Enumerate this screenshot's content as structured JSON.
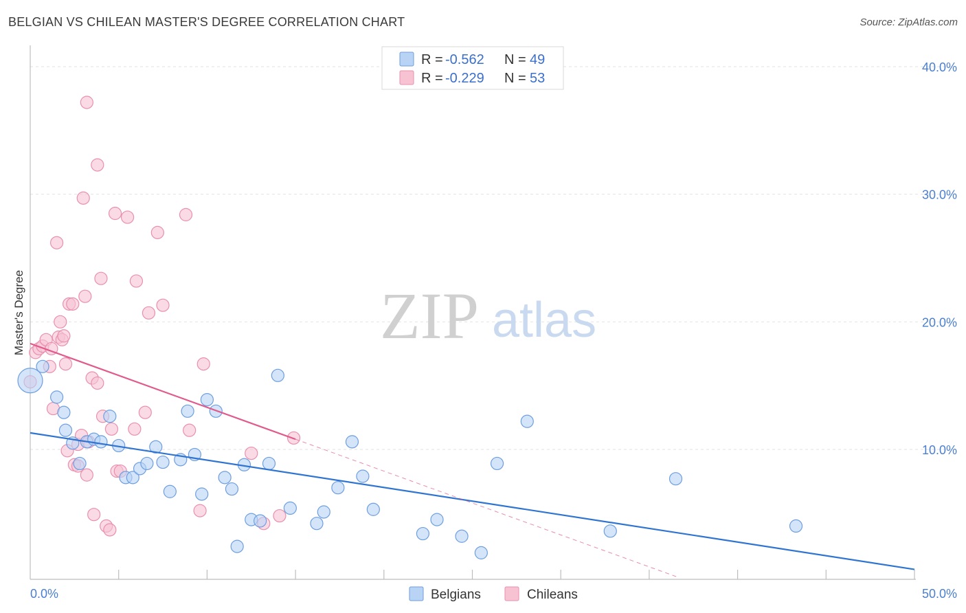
{
  "chart_data": {
    "type": "scatter",
    "title": "BELGIAN VS CHILEAN MASTER'S DEGREE CORRELATION CHART",
    "source": "Source: ZipAtlas.com",
    "ylabel": "Master's Degree",
    "xlabel": "",
    "xlim": [
      0,
      50
    ],
    "ylim": [
      0,
      40
    ],
    "x_tick_labels": [
      "0.0%",
      "50.0%"
    ],
    "y_tick_labels": [
      "10.0%",
      "20.0%",
      "30.0%",
      "40.0%"
    ],
    "y_ticks": [
      10,
      20,
      30,
      40
    ],
    "colors": {
      "belgians_fill": "#b9d3f5",
      "belgians_stroke": "#6d9ee0",
      "belgians_line": "#2f74d0",
      "chileans_fill": "#f7c3d3",
      "chileans_stroke": "#e98fae",
      "chileans_line": "#e05a8c",
      "tick_label": "#4a7fd0"
    },
    "legend": {
      "rows": [
        {
          "r_label": "R =",
          "r_value": "-0.562",
          "n_label": "N =",
          "n_value": "49"
        },
        {
          "r_label": "R =",
          "r_value": "-0.229",
          "n_label": "N =",
          "n_value": "53"
        }
      ]
    },
    "series": [
      {
        "name": "Belgians",
        "trend": {
          "x": [
            0,
            50
          ],
          "y": [
            11.3,
            0.6
          ]
        },
        "points": [
          [
            0.0,
            15.4
          ],
          [
            0.7,
            16.5
          ],
          [
            1.5,
            14.1
          ],
          [
            1.9,
            12.9
          ],
          [
            2.0,
            11.5
          ],
          [
            2.4,
            10.5
          ],
          [
            2.8,
            8.9
          ],
          [
            3.2,
            10.6
          ],
          [
            3.6,
            10.8
          ],
          [
            4.0,
            10.6
          ],
          [
            4.5,
            12.6
          ],
          [
            5.0,
            10.3
          ],
          [
            5.4,
            7.8
          ],
          [
            5.8,
            7.8
          ],
          [
            6.2,
            8.5
          ],
          [
            6.6,
            8.9
          ],
          [
            7.1,
            10.2
          ],
          [
            7.5,
            9.0
          ],
          [
            7.9,
            6.7
          ],
          [
            8.5,
            9.2
          ],
          [
            8.9,
            13.0
          ],
          [
            9.3,
            9.6
          ],
          [
            9.7,
            6.5
          ],
          [
            10.0,
            13.9
          ],
          [
            10.5,
            13.0
          ],
          [
            11.0,
            7.8
          ],
          [
            11.4,
            6.9
          ],
          [
            11.7,
            2.4
          ],
          [
            12.1,
            8.8
          ],
          [
            12.5,
            4.5
          ],
          [
            13.0,
            4.4
          ],
          [
            13.5,
            8.9
          ],
          [
            14.0,
            15.8
          ],
          [
            14.7,
            5.4
          ],
          [
            16.2,
            4.2
          ],
          [
            16.6,
            5.1
          ],
          [
            17.4,
            7.0
          ],
          [
            18.2,
            10.6
          ],
          [
            18.8,
            7.9
          ],
          [
            19.4,
            5.3
          ],
          [
            22.2,
            3.4
          ],
          [
            23.0,
            4.5
          ],
          [
            24.4,
            3.2
          ],
          [
            25.5,
            1.9
          ],
          [
            26.4,
            8.9
          ],
          [
            28.1,
            12.2
          ],
          [
            32.8,
            3.6
          ],
          [
            36.5,
            7.7
          ],
          [
            43.3,
            4.0
          ]
        ]
      },
      {
        "name": "Chileans",
        "trend": {
          "x": [
            0,
            15
          ],
          "y": [
            18.3,
            10.8
          ]
        },
        "trend_dashed": {
          "x": [
            15,
            50
          ],
          "y": [
            10.8,
            -6.7
          ]
        },
        "points": [
          [
            0.0,
            15.3
          ],
          [
            0.3,
            17.6
          ],
          [
            0.5,
            17.9
          ],
          [
            0.7,
            18.1
          ],
          [
            0.9,
            18.6
          ],
          [
            1.1,
            16.5
          ],
          [
            1.2,
            17.9
          ],
          [
            1.3,
            13.2
          ],
          [
            1.6,
            18.8
          ],
          [
            1.7,
            20.0
          ],
          [
            1.5,
            26.2
          ],
          [
            1.8,
            18.6
          ],
          [
            1.9,
            18.9
          ],
          [
            2.0,
            16.7
          ],
          [
            2.1,
            9.9
          ],
          [
            2.2,
            21.4
          ],
          [
            2.4,
            21.4
          ],
          [
            2.5,
            8.8
          ],
          [
            2.7,
            10.4
          ],
          [
            2.7,
            8.7
          ],
          [
            2.9,
            11.1
          ],
          [
            3.1,
            22.0
          ],
          [
            3.0,
            29.7
          ],
          [
            3.2,
            37.2
          ],
          [
            3.2,
            8.0
          ],
          [
            3.3,
            10.6
          ],
          [
            3.5,
            15.6
          ],
          [
            3.6,
            4.9
          ],
          [
            3.8,
            15.2
          ],
          [
            3.8,
            32.3
          ],
          [
            4.0,
            23.4
          ],
          [
            4.1,
            12.6
          ],
          [
            4.3,
            4.0
          ],
          [
            4.6,
            11.6
          ],
          [
            4.5,
            3.7
          ],
          [
            4.8,
            28.5
          ],
          [
            4.9,
            8.3
          ],
          [
            5.1,
            8.3
          ],
          [
            5.5,
            28.2
          ],
          [
            5.9,
            11.6
          ],
          [
            6.0,
            23.2
          ],
          [
            6.5,
            12.9
          ],
          [
            6.7,
            20.7
          ],
          [
            7.2,
            27.0
          ],
          [
            7.5,
            21.3
          ],
          [
            8.8,
            28.4
          ],
          [
            9.6,
            5.2
          ],
          [
            9.8,
            16.7
          ],
          [
            12.5,
            9.7
          ],
          [
            13.2,
            4.2
          ],
          [
            14.1,
            4.8
          ],
          [
            14.9,
            10.9
          ],
          [
            9.0,
            11.5
          ]
        ]
      }
    ],
    "watermark": {
      "zip": "ZIP",
      "atlas": "atlas"
    }
  }
}
